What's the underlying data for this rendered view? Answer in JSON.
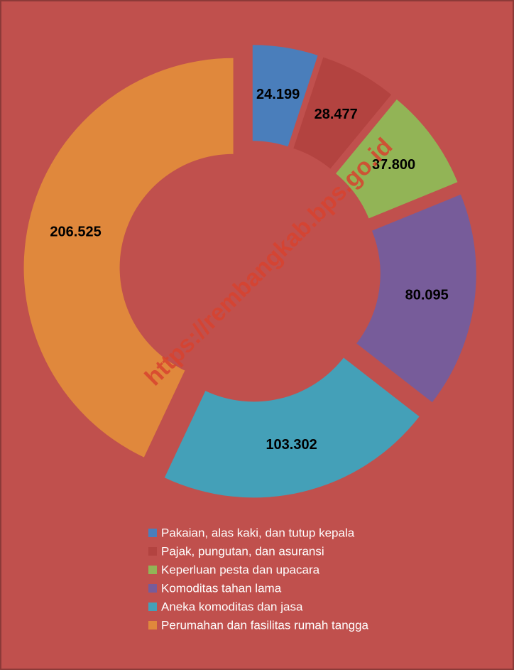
{
  "chart_data": {
    "type": "donut",
    "watermark": "https://rembangkab.bps.go.id",
    "categories": [
      "Pakaian, alas kaki, dan tutup kepala",
      "Pajak, pungutan, dan asuransi",
      "Keperluan pesta dan upacara",
      "Komoditas tahan lama",
      "Aneka komoditas dan jasa",
      "Perumahan dan fasilitas rumah tangga"
    ],
    "values": [
      24199,
      28477,
      37800,
      80095,
      103302,
      206525
    ],
    "value_labels": [
      "24.199",
      "28.477",
      "37.800",
      "80.095",
      "103.302",
      "206.525"
    ],
    "colors": [
      "#4a7ebb",
      "#b34340",
      "#92b456",
      "#775c9a",
      "#44a0b8",
      "#e0883c"
    ],
    "background": "#c0504d"
  }
}
